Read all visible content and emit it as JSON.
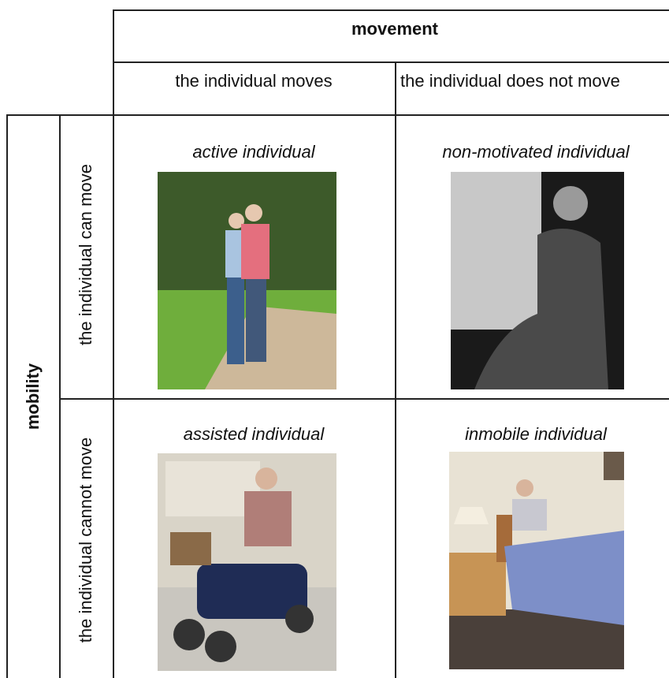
{
  "header": {
    "title": "movement",
    "columns": [
      "the individual moves",
      "the individual does not move"
    ]
  },
  "side": {
    "title": "mobility",
    "rows": [
      "the individual can move",
      "the individual cannot move"
    ]
  },
  "cells": [
    [
      "active individual",
      "non-motivated individual"
    ],
    [
      "assisted individual",
      "inmobile individual"
    ]
  ]
}
